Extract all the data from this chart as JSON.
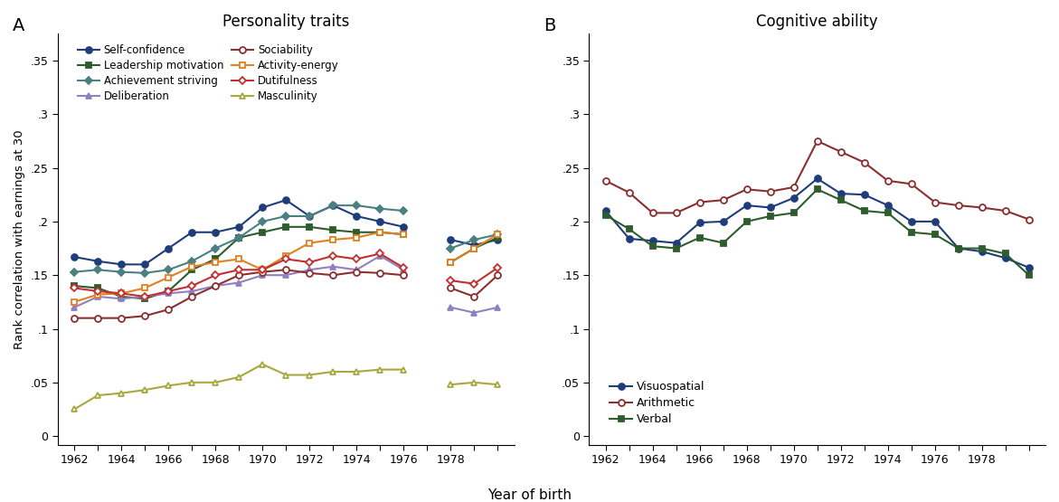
{
  "years_A": [
    1962,
    1963,
    1964,
    1965,
    1966,
    1967,
    1968,
    1969,
    1970,
    1971,
    1972,
    1973,
    1974,
    1975,
    1976,
    1978,
    1979,
    1980
  ],
  "years_B": [
    1962,
    1963,
    1964,
    1965,
    1966,
    1967,
    1968,
    1969,
    1970,
    1971,
    1972,
    1973,
    1974,
    1975,
    1976,
    1977,
    1978,
    1979,
    1980
  ],
  "self_confidence": [
    0.167,
    0.163,
    0.16,
    0.16,
    0.175,
    0.19,
    0.19,
    0.195,
    0.213,
    0.22,
    0.205,
    0.215,
    0.205,
    0.2,
    0.195,
    0.183,
    0.178,
    0.183
  ],
  "leadership_motivation": [
    0.14,
    0.138,
    0.13,
    0.128,
    0.135,
    0.155,
    0.165,
    0.185,
    0.19,
    0.195,
    0.195,
    0.192,
    0.19,
    0.19,
    0.188,
    0.162,
    0.175,
    0.185
  ],
  "achievement_striving": [
    0.153,
    0.155,
    0.153,
    0.152,
    0.155,
    0.163,
    0.175,
    0.185,
    0.2,
    0.205,
    0.205,
    0.215,
    0.215,
    0.212,
    0.21,
    0.175,
    0.183,
    0.188
  ],
  "deliberation": [
    0.12,
    0.13,
    0.128,
    0.13,
    0.133,
    0.135,
    0.14,
    0.143,
    0.15,
    0.15,
    0.155,
    0.158,
    0.155,
    0.168,
    0.155,
    0.12,
    0.115,
    0.12
  ],
  "sociability": [
    0.11,
    0.11,
    0.11,
    0.112,
    0.118,
    0.13,
    0.14,
    0.15,
    0.153,
    0.155,
    0.152,
    0.15,
    0.153,
    0.152,
    0.15,
    0.138,
    0.13,
    0.15
  ],
  "activity_energy": [
    0.125,
    0.132,
    0.133,
    0.138,
    0.148,
    0.158,
    0.162,
    0.165,
    0.155,
    0.168,
    0.18,
    0.183,
    0.185,
    0.19,
    0.188,
    0.162,
    0.175,
    0.188
  ],
  "dutifulness": [
    0.138,
    0.135,
    0.133,
    0.13,
    0.135,
    0.14,
    0.15,
    0.155,
    0.155,
    0.165,
    0.162,
    0.168,
    0.165,
    0.17,
    0.157,
    0.145,
    0.142,
    0.157
  ],
  "masculinity": [
    0.025,
    0.038,
    0.04,
    0.043,
    0.047,
    0.05,
    0.05,
    0.055,
    0.067,
    0.057,
    0.057,
    0.06,
    0.06,
    0.062,
    0.062,
    0.048,
    0.05,
    0.048
  ],
  "visuospatial": [
    0.21,
    0.184,
    0.182,
    0.18,
    0.199,
    0.2,
    0.215,
    0.213,
    0.222,
    0.24,
    0.226,
    0.225,
    0.215,
    0.2,
    0.2,
    0.175,
    0.172,
    0.166,
    0.157
  ],
  "arithmetic": [
    0.238,
    0.227,
    0.208,
    0.208,
    0.218,
    0.22,
    0.23,
    0.228,
    0.232,
    0.275,
    0.265,
    0.255,
    0.238,
    0.235,
    0.218,
    0.215,
    0.213,
    0.21,
    0.202
  ],
  "verbal": [
    0.206,
    0.193,
    0.177,
    0.175,
    0.185,
    0.18,
    0.2,
    0.205,
    0.208,
    0.23,
    0.22,
    0.21,
    0.208,
    0.19,
    0.188,
    0.175,
    0.175,
    0.17,
    0.15
  ],
  "years_A_seg1": [
    1962,
    1963,
    1964,
    1965,
    1966,
    1967,
    1968,
    1969,
    1970,
    1971,
    1972,
    1973,
    1974,
    1975,
    1976
  ],
  "years_A_seg2": [
    1978,
    1979,
    1980
  ],
  "title_A": "Personality traits",
  "title_B": "Cognitive ability",
  "ylabel": "Rank correlation with earnings at 30",
  "xlabel": "Year of birth",
  "label_A": "A",
  "label_B": "B"
}
